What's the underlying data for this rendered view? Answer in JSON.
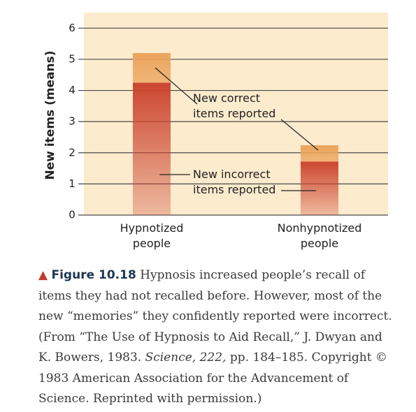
{
  "chart_data": {
    "type": "stacked-bar",
    "y_label": "New items (means)",
    "categories": [
      "Hypnotized people",
      "Nonhypnotized people"
    ],
    "series": [
      {
        "name": "New incorrect items reported",
        "color": "#cc4630",
        "values": [
          4.25,
          1.72
        ]
      },
      {
        "name": "New correct items reported",
        "color": "#eba45c",
        "values": [
          0.95,
          0.52
        ]
      }
    ],
    "ylim": [
      0,
      6.5
    ],
    "yticks": [
      0,
      1,
      2,
      3,
      4,
      5,
      6
    ],
    "grid": true,
    "background": "#fcebcd"
  },
  "caption": {
    "label": "Figure 10.18",
    "text": [
      "Hypnosis increased people’s recall of items they had not recalled before. However, most of the new “memories” they confidently reported were incorrect. (From “The Use of Hypnosis to Aid Recall,” J. Dwyan and K. Bowers, 1983. ",
      "Science, 222,",
      " pp. 184–185. Copyright © 1983 American Association for the Advancement of Science. Reprinted with permission.)"
    ]
  }
}
